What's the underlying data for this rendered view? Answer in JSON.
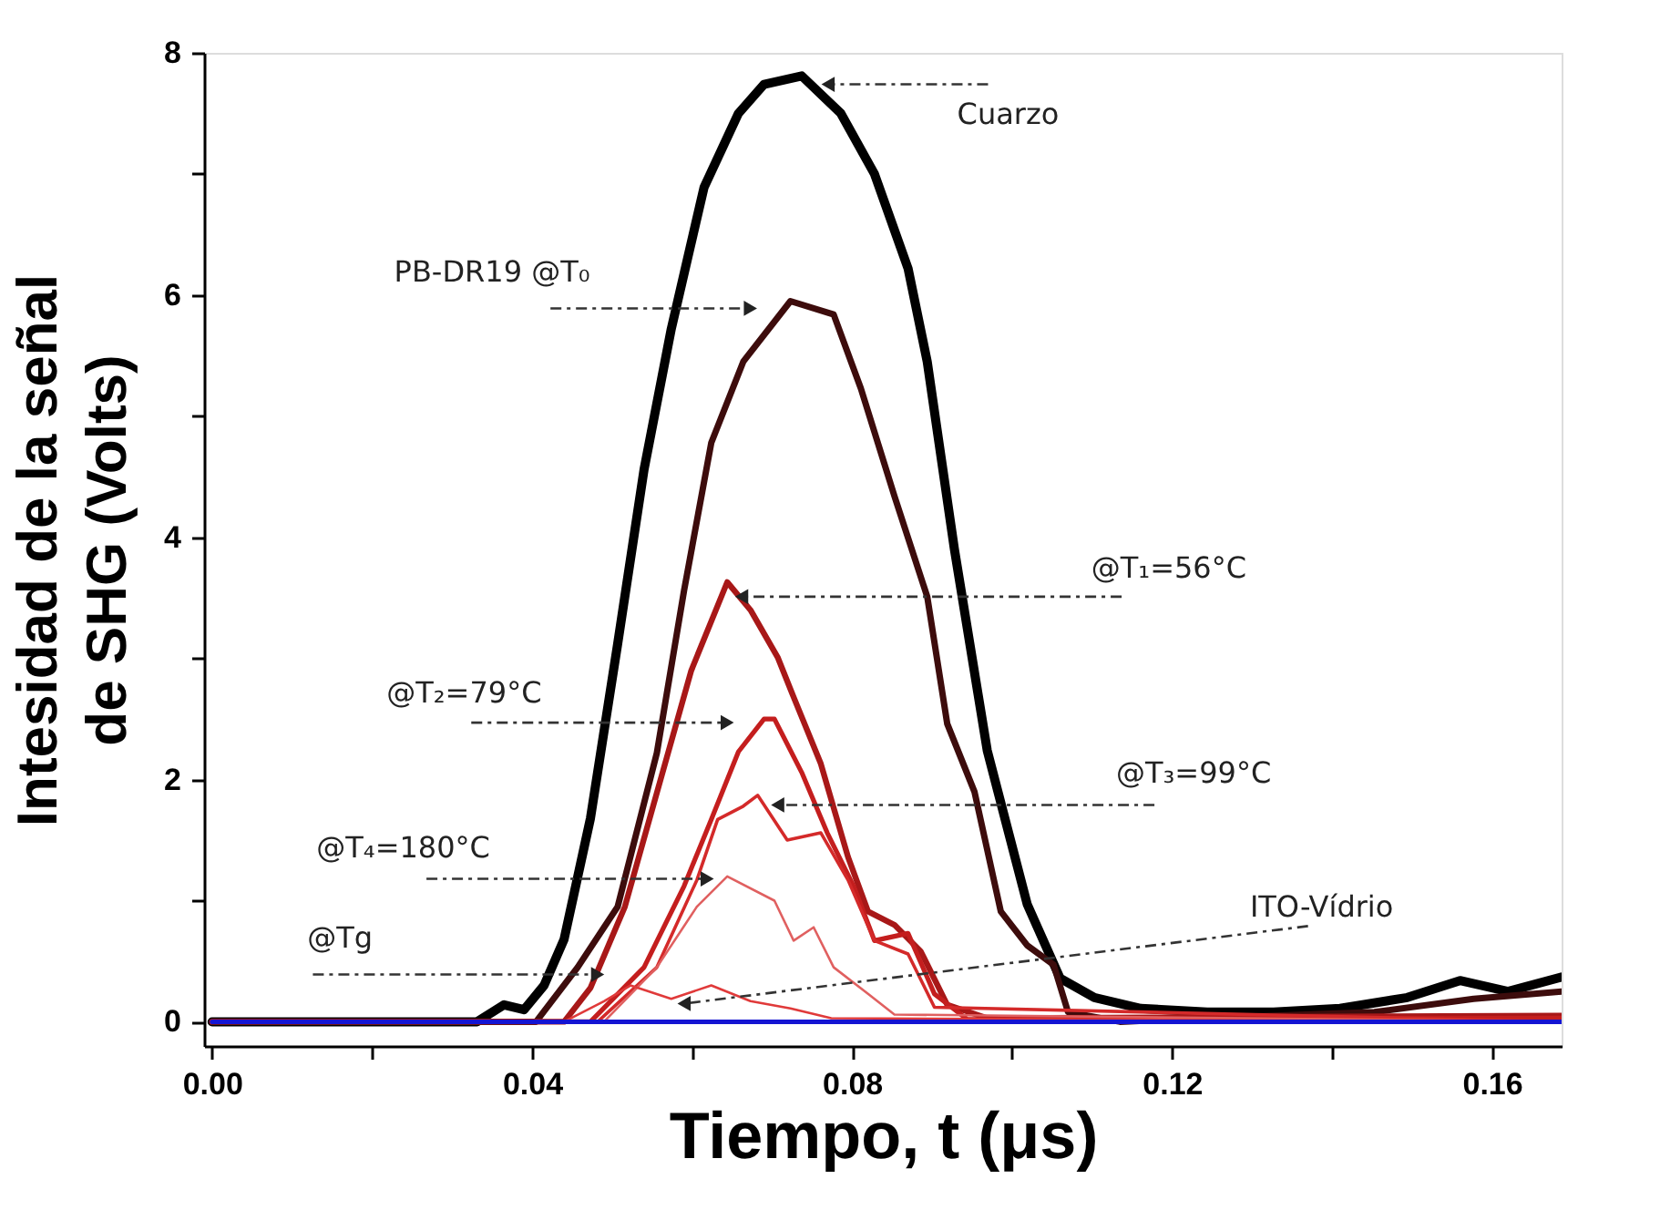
{
  "chart_data": {
    "type": "line",
    "xlabel": "Tiempo, t (μs)",
    "ylabel": "Intesidad de la señal\nde SHG (Volts)",
    "xlim": [
      -0.001,
      0.1687
    ],
    "ylim": [
      -0.2,
      8
    ],
    "xticks": [
      {
        "value": 0,
        "label": "0.00"
      },
      {
        "value": 0.02,
        "label": null
      },
      {
        "value": 0.04,
        "label": "0.04"
      },
      {
        "value": 0.06,
        "label": null
      },
      {
        "value": 0.08,
        "label": "0.08"
      },
      {
        "value": 0.1,
        "label": null
      },
      {
        "value": 0.12,
        "label": "0.12"
      },
      {
        "value": 0.14,
        "label": null
      },
      {
        "value": 0.16,
        "label": "0.16"
      }
    ],
    "yticks": [
      0,
      {
        "value": 1,
        "label": null
      },
      2,
      {
        "value": 3,
        "label": null
      },
      4,
      {
        "value": 5,
        "label": null
      },
      6,
      {
        "value": 7,
        "label": null
      },
      8
    ],
    "grid": false,
    "marker": "none",
    "line_style": "solid",
    "series": [
      {
        "color": "#000000",
        "x": [
          0,
          0.0331,
          0.0365,
          0.039,
          0.0415,
          0.044,
          0.0473,
          0.0507,
          0.054,
          0.0574,
          0.0615,
          0.0658,
          0.069,
          0.0737,
          0.0786,
          0.0828,
          0.087,
          0.0894,
          0.0928,
          0.0969,
          0.1019,
          0.106,
          0.1103,
          0.1161,
          0.1244,
          0.1327,
          0.141,
          0.1494,
          0.156,
          0.162,
          0.1687
        ],
        "values": [
          0,
          0,
          0.14,
          0.1,
          0.3,
          0.68,
          1.68,
          3.12,
          4.56,
          5.72,
          6.89,
          7.5,
          7.74,
          7.81,
          7.5,
          7.0,
          6.22,
          5.45,
          3.9,
          2.24,
          0.97,
          0.36,
          0.2,
          0.11,
          0.08,
          0.08,
          0.11,
          0.2,
          0.34,
          0.25,
          0.37
        ]
      },
      {
        "color": "#3d0c0c",
        "x": [
          0,
          0.0405,
          0.0457,
          0.0507,
          0.0556,
          0.059,
          0.0624,
          0.0664,
          0.0723,
          0.0777,
          0.0811,
          0.0853,
          0.0894,
          0.0919,
          0.0953,
          0.0986,
          0.1019,
          0.1052,
          0.107,
          0.1135,
          0.1203,
          0.1453,
          0.1577,
          0.1687
        ],
        "values": [
          0,
          0,
          0.45,
          0.95,
          2.22,
          3.56,
          4.78,
          5.45,
          5.95,
          5.84,
          5.23,
          4.34,
          3.51,
          2.46,
          1.9,
          0.91,
          0.63,
          0.47,
          0.08,
          0,
          0.02,
          0.08,
          0.19,
          0.25
        ]
      },
      {
        "color": "#a81818",
        "x": [
          0,
          0.044,
          0.0473,
          0.0516,
          0.0556,
          0.0599,
          0.0644,
          0.0673,
          0.0707,
          0.0727,
          0.0761,
          0.0795,
          0.082,
          0.0853,
          0.0886,
          0.0919,
          0.0969,
          0.1687
        ],
        "values": [
          0,
          0,
          0.28,
          0.95,
          1.89,
          2.9,
          3.63,
          3.4,
          3.01,
          2.68,
          2.13,
          1.36,
          0.91,
          0.8,
          0.58,
          0.14,
          0.03,
          0.05
        ]
      },
      {
        "color": "#c41e1e",
        "x": [
          0,
          0.0473,
          0.054,
          0.059,
          0.0624,
          0.0658,
          0.069,
          0.0703,
          0.0737,
          0.0769,
          0.0802,
          0.0828,
          0.087,
          0.0903,
          0.0944,
          0.1687
        ],
        "values": [
          0,
          0,
          0.45,
          1.12,
          1.67,
          2.23,
          2.5,
          2.5,
          2.06,
          1.56,
          1.12,
          0.67,
          0.73,
          0.23,
          0.02,
          0.03
        ]
      },
      {
        "color": "#d42a2a",
        "x": [
          0,
          0.0482,
          0.0556,
          0.0606,
          0.0632,
          0.0664,
          0.0682,
          0.0719,
          0.0761,
          0.0795,
          0.0828,
          0.087,
          0.0903,
          0.1687
        ],
        "values": [
          0,
          0,
          0.45,
          1.17,
          1.67,
          1.78,
          1.87,
          1.5,
          1.56,
          1.17,
          0.67,
          0.56,
          0.12,
          0
        ]
      },
      {
        "color": "#e06060",
        "x": [
          0,
          0.049,
          0.0556,
          0.0606,
          0.0644,
          0.0703,
          0.0727,
          0.0752,
          0.0777,
          0.082,
          0.0853,
          0.1687
        ],
        "values": [
          0,
          0,
          0.45,
          0.95,
          1.2,
          1.0,
          0.67,
          0.78,
          0.45,
          0.23,
          0.06,
          0
        ]
      },
      {
        "color": "#e03a3a",
        "x": [
          0,
          0.044,
          0.049,
          0.0523,
          0.0574,
          0.0624,
          0.0673,
          0.0723,
          0.0774,
          0.1687
        ],
        "values": [
          0,
          0,
          0.17,
          0.3,
          0.19,
          0.3,
          0.17,
          0.11,
          0.03,
          0
        ]
      },
      {
        "color": "#1414d2",
        "x": [
          0,
          0.1687
        ],
        "values": [
          0,
          0
        ]
      }
    ],
    "annotations": [
      {
        "text": "Cuarzo",
        "x": 0.077,
        "y": 7.74
      },
      {
        "text": "PB-DR19 @T₀",
        "x": 0.0673,
        "y": 5.89
      },
      {
        "text": "@T₁=56°C",
        "x": 0.0662,
        "y": 3.51
      },
      {
        "text": "@T₂=79°C",
        "x": 0.0644,
        "y": 2.47
      },
      {
        "text": "@T₃=99°C",
        "x": 0.0707,
        "y": 1.79
      },
      {
        "text": "@T₄=180°C",
        "x": 0.0619,
        "y": 1.18
      },
      {
        "text": "@Tg",
        "x": 0.0482,
        "y": 0.39
      },
      {
        "text": "ITO-Vídrio",
        "x": 0.059,
        "y": 0.15
      }
    ]
  }
}
